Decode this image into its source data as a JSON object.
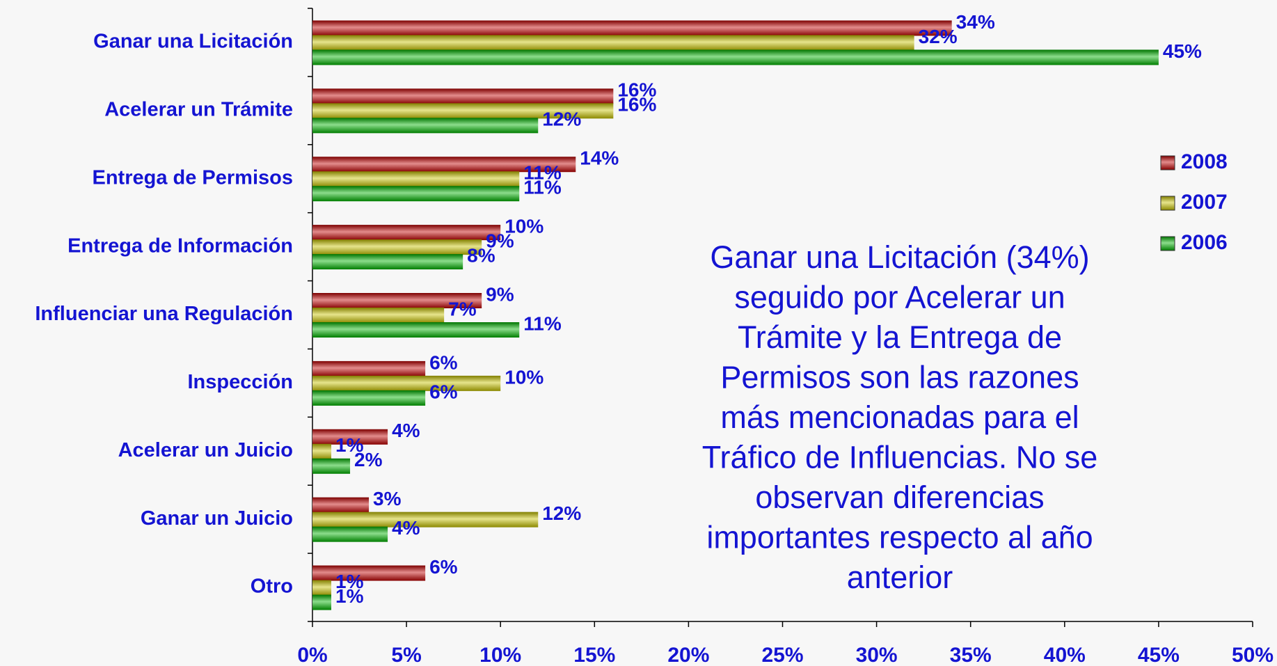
{
  "chart_data": {
    "type": "bar",
    "orientation": "horizontal",
    "categories": [
      "Ganar una Licitación",
      "Acelerar un Trámite",
      "Entrega de Permisos",
      "Entrega de Información",
      "Influenciar una Regulación",
      "Inspección",
      "Acelerar un Juicio",
      "Ganar un Juicio",
      "Otro"
    ],
    "series": [
      {
        "name": "2008",
        "color": "#c00000",
        "values": [
          34,
          16,
          14,
          10,
          9,
          6,
          4,
          3,
          6
        ],
        "value_labels": [
          "34%",
          "16%",
          "14%",
          "10%",
          "9%",
          "6%",
          "4%",
          "3%",
          "6%"
        ]
      },
      {
        "name": "2007",
        "color": "#c8c400",
        "values": [
          32,
          16,
          11,
          9,
          7,
          10,
          1,
          12,
          1
        ],
        "value_labels": [
          "32%",
          "16%",
          "11%",
          "9%",
          "7%",
          "10%",
          "1%",
          "12%",
          "1%"
        ]
      },
      {
        "name": "2006",
        "color": "#00b400",
        "values": [
          45,
          12,
          11,
          8,
          11,
          6,
          2,
          4,
          1
        ],
        "value_labels": [
          "45%",
          "12%",
          "11%",
          "8%",
          "11%",
          "6%",
          "2%",
          "4%",
          "1%"
        ]
      }
    ],
    "xlim": [
      0,
      50
    ],
    "xticks": [
      {
        "value": 0,
        "label": "0%"
      },
      {
        "value": 5,
        "label": "5%"
      },
      {
        "value": 10,
        "label": "10%"
      },
      {
        "value": 15,
        "label": "15%"
      },
      {
        "value": 20,
        "label": "20%"
      },
      {
        "value": 25,
        "label": "25%"
      },
      {
        "value": 30,
        "label": "30%"
      },
      {
        "value": 35,
        "label": "35%"
      },
      {
        "value": 40,
        "label": "40%"
      },
      {
        "value": 45,
        "label": "45%"
      },
      {
        "value": 50,
        "label": "50%"
      }
    ],
    "annotation": [
      "Ganar una Licitación (34%)",
      "seguido por Acelerar un",
      "Trámite y la Entrega de",
      "Permisos son las razones",
      "más mencionadas para el",
      "Tráfico de Influencias. No se",
      "observan diferencias",
      "importantes respecto al año",
      "anterior"
    ],
    "legend": "right"
  }
}
